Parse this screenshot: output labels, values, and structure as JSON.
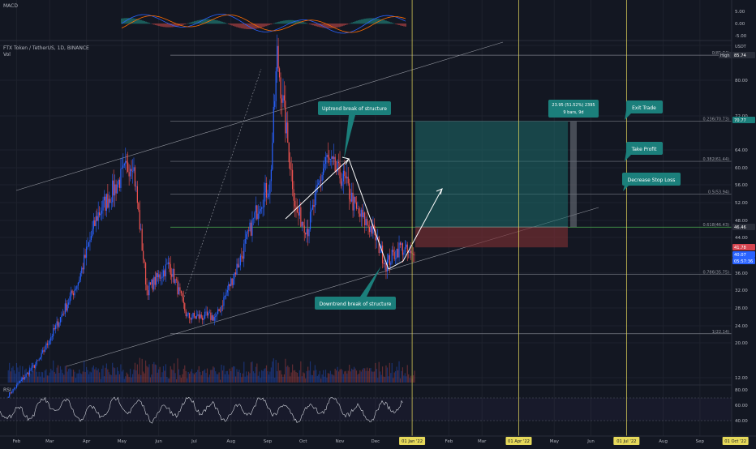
{
  "header": {
    "symbol": "FTX Token / TetherUS, 1D, BINANCE",
    "vol_label": "Vol",
    "macd_label": "MACD",
    "rsi_label": "RSI",
    "currency": "USDT"
  },
  "price_axis": {
    "ticks": [
      "88.00",
      "80.00",
      "72.00",
      "64.00",
      "60.00",
      "56.00",
      "52.00",
      "48.00",
      "44.00",
      "40.00",
      "36.00",
      "32.00",
      "28.00",
      "24.00",
      "20.00",
      "16.00",
      "12.00"
    ],
    "high_tag": "High",
    "high_value": "85.74",
    "tag_exit": "70.77",
    "tag_entry": "46.46",
    "tag_stop": "41.78",
    "tag_current": "40.07",
    "tag_countdown": "05:57:36"
  },
  "macd_axis": {
    "ticks": [
      "5.00",
      "0.00",
      "-5.00"
    ]
  },
  "rsi_axis": {
    "ticks": [
      "80.00",
      "60.00",
      "40.00"
    ]
  },
  "time_axis": {
    "months": [
      "Feb",
      "Mar",
      "Apr",
      "May",
      "Jun",
      "Jul",
      "Aug",
      "Sep",
      "Oct",
      "Nov",
      "Dec",
      "Feb",
      "Mar",
      "May",
      "Jun",
      "Aug",
      "Sep"
    ],
    "highlights": [
      "01 Jan '22",
      "01 Apr '22",
      "01 Jul '22",
      "01 Oct '22"
    ]
  },
  "fib_levels": [
    {
      "label": "0(85.74)",
      "price": 85.74
    },
    {
      "label": "0.236(70.73)",
      "price": 70.73
    },
    {
      "label": "0.382(61.44)",
      "price": 61.44
    },
    {
      "label": "0.5(53.94)",
      "price": 53.94
    },
    {
      "label": "0.618(46.43)",
      "price": 46.43
    },
    {
      "label": "0.786(35.75)",
      "price": 35.75
    },
    {
      "label": "1(22.14)",
      "price": 22.14
    }
  ],
  "annotations": {
    "uptrend": "Uptrend break of structure",
    "downtrend": "Downtrend break of structure",
    "exit": "Exit Trade",
    "take_profit": "Take Profit",
    "decrease_stop": "Decrease Stop Loss",
    "position_line1": "23.95 (51.52%) 2395",
    "position_line2": "9 bars, 9d"
  },
  "chart_data": {
    "type": "candlestick",
    "pair": "FTX Token / TetherUS",
    "timeframe": "1D",
    "exchange": "BINANCE",
    "price_range": [
      8,
      96
    ],
    "key_prices": {
      "high": 85.74,
      "exit": 70.77,
      "entry": 46.46,
      "stop": 41.78,
      "current": 40.07
    },
    "swing_points": [
      {
        "date": "2021-01-25",
        "price": 8
      },
      {
        "date": "2021-02-20",
        "price": 16
      },
      {
        "date": "2021-03-25",
        "price": 34
      },
      {
        "date": "2021-04-10",
        "price": 49
      },
      {
        "date": "2021-05-01",
        "price": 58
      },
      {
        "date": "2021-05-10",
        "price": 62
      },
      {
        "date": "2021-05-22",
        "price": 32
      },
      {
        "date": "2021-06-10",
        "price": 38
      },
      {
        "date": "2021-06-25",
        "price": 26
      },
      {
        "date": "2021-07-20",
        "price": 26
      },
      {
        "date": "2021-08-10",
        "price": 40
      },
      {
        "date": "2021-08-25",
        "price": 52
      },
      {
        "date": "2021-09-03",
        "price": 56
      },
      {
        "date": "2021-09-09",
        "price": 85.74
      },
      {
        "date": "2021-09-25",
        "price": 50
      },
      {
        "date": "2021-10-05",
        "price": 46
      },
      {
        "date": "2021-10-20",
        "price": 62
      },
      {
        "date": "2021-11-05",
        "price": 57
      },
      {
        "date": "2021-11-15",
        "price": 50
      },
      {
        "date": "2021-11-28",
        "price": 46
      },
      {
        "date": "2021-12-10",
        "price": 38
      },
      {
        "date": "2021-12-22",
        "price": 42
      },
      {
        "date": "2022-01-01",
        "price": 39.5
      },
      {
        "date": "2022-01-03",
        "price": 40.07
      }
    ],
    "macd_range": [
      -6,
      6
    ],
    "rsi_range": [
      30,
      80
    ]
  }
}
